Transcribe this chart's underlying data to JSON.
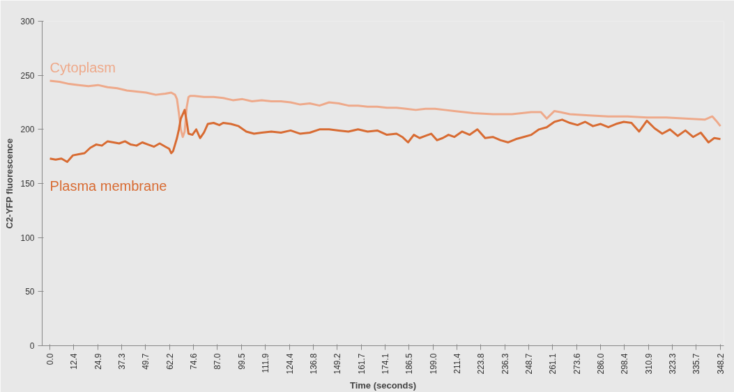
{
  "chart_data": {
    "type": "line",
    "xlabel": "Time (seconds)",
    "ylabel": "C2-YFP fluorescence",
    "xlim": [
      -4,
      350
    ],
    "ylim": [
      0,
      300
    ],
    "yticks": [
      0,
      50,
      100,
      150,
      200,
      250,
      300
    ],
    "xticks": [
      {
        "value": 0,
        "label": "0.0"
      },
      12.4,
      24.9,
      37.3,
      49.7,
      62.2,
      74.6,
      {
        "value": 87,
        "label": "87.0"
      },
      99.5,
      111.9,
      124.4,
      136.8,
      149.2,
      161.7,
      174.1,
      186.5,
      {
        "value": 199,
        "label": "199.0"
      },
      211.4,
      223.8,
      236.3,
      248.7,
      261.1,
      273.6,
      {
        "value": 286,
        "label": "286.0"
      },
      298.4,
      310.9,
      323.3,
      335.7,
      348.2
    ],
    "legend": false,
    "marker": "none",
    "line_style": "solid",
    "series": [
      {
        "name": "Cytoplasm",
        "color": "#eea98a",
        "x": [
          0,
          5,
          10,
          15,
          20,
          25,
          30,
          35,
          40,
          45,
          50,
          55,
          60,
          63,
          65,
          66,
          67,
          68,
          69,
          70,
          71,
          72,
          73,
          75,
          80,
          85,
          90,
          95,
          100,
          105,
          110,
          115,
          120,
          125,
          130,
          135,
          140,
          145,
          150,
          155,
          160,
          165,
          170,
          175,
          180,
          185,
          190,
          195,
          200,
          205,
          210,
          215,
          220,
          230,
          240,
          250,
          255,
          258,
          262,
          265,
          270,
          280,
          290,
          300,
          310,
          320,
          330,
          340,
          344,
          346,
          348.2
        ],
        "values": [
          245,
          244,
          242,
          241,
          240,
          241,
          239,
          238,
          236,
          235,
          234,
          232,
          233,
          234,
          232,
          228,
          215,
          200,
          193,
          198,
          220,
          230,
          231,
          231,
          230,
          230,
          229,
          227,
          228,
          226,
          227,
          226,
          226,
          225,
          223,
          224,
          222,
          225,
          224,
          222,
          222,
          221,
          221,
          220,
          220,
          219,
          218,
          219,
          219,
          218,
          217,
          216,
          215,
          214,
          214,
          216,
          216,
          210,
          217,
          216,
          214,
          213,
          212,
          212,
          211,
          211,
          210,
          209,
          212,
          208,
          203
        ]
      },
      {
        "name": "Plasma membrane",
        "color": "#d86b32",
        "x": [
          0,
          3,
          6,
          9,
          12,
          15,
          18,
          21,
          24,
          27,
          30,
          33,
          36,
          39,
          42,
          45,
          48,
          51,
          54,
          57,
          60,
          62,
          63,
          64,
          65,
          66,
          67,
          68,
          69,
          70,
          71,
          72,
          74,
          76,
          78,
          80,
          82,
          85,
          88,
          90,
          94,
          98,
          102,
          106,
          110,
          115,
          120,
          125,
          130,
          135,
          140,
          145,
          150,
          155,
          160,
          165,
          170,
          175,
          180,
          183,
          186,
          189,
          192,
          195,
          198,
          201,
          204,
          207,
          210,
          214,
          218,
          222,
          226,
          230,
          234,
          238,
          242,
          246,
          250,
          254,
          258,
          262,
          266,
          270,
          274,
          278,
          282,
          286,
          290,
          294,
          298,
          302,
          306,
          310,
          314,
          318,
          322,
          326,
          330,
          334,
          338,
          342,
          345,
          348.2
        ],
        "values": [
          173,
          172,
          173,
          170,
          176,
          177,
          178,
          183,
          186,
          185,
          189,
          188,
          187,
          189,
          186,
          185,
          188,
          186,
          184,
          187,
          184,
          182,
          178,
          180,
          186,
          192,
          200,
          210,
          214,
          218,
          208,
          196,
          195,
          200,
          192,
          197,
          205,
          206,
          204,
          206,
          205,
          203,
          198,
          196,
          197,
          198,
          197,
          199,
          196,
          197,
          200,
          200,
          199,
          198,
          200,
          198,
          199,
          195,
          196,
          193,
          188,
          195,
          192,
          194,
          196,
          190,
          192,
          195,
          193,
          198,
          195,
          200,
          192,
          193,
          190,
          188,
          191,
          193,
          195,
          200,
          202,
          207,
          209,
          206,
          204,
          207,
          203,
          205,
          202,
          205,
          207,
          206,
          198,
          208,
          201,
          196,
          200,
          194,
          199,
          193,
          197,
          188,
          192,
          191
        ]
      }
    ]
  }
}
